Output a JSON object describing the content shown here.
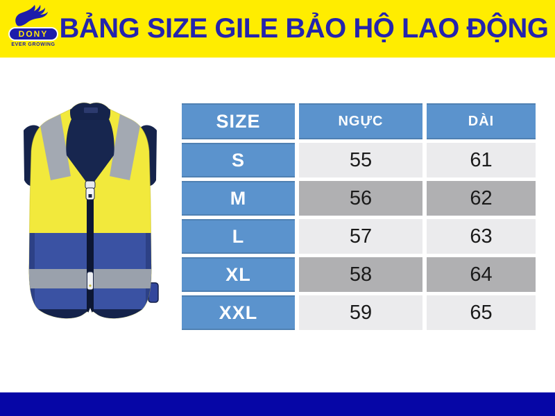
{
  "header": {
    "title": "BẢNG SIZE GILE BẢO HỘ LAO ĐỘNG",
    "logo": {
      "brand": "DONY",
      "tagline": "EVER GROWING"
    }
  },
  "size_table": {
    "columns": [
      "SIZE",
      "NGỰC",
      "DÀI"
    ],
    "rows": [
      {
        "size": "S",
        "chest": "55",
        "length": "61"
      },
      {
        "size": "M",
        "chest": "56",
        "length": "62"
      },
      {
        "size": "L",
        "chest": "57",
        "length": "63"
      },
      {
        "size": "XL",
        "chest": "58",
        "length": "64"
      },
      {
        "size": "XXL",
        "chest": "59",
        "length": "65"
      }
    ]
  },
  "chart_data": {
    "type": "table",
    "title": "BẢNG SIZE GILE BẢO HỘ LAO ĐỘNG",
    "columns": [
      "SIZE",
      "NGỰC",
      "DÀI"
    ],
    "rows": [
      [
        "S",
        55,
        61
      ],
      [
        "M",
        56,
        62
      ],
      [
        "L",
        57,
        63
      ],
      [
        "XL",
        58,
        64
      ],
      [
        "XXL",
        59,
        65
      ]
    ]
  },
  "illustration": {
    "name": "hi-vis-safety-vest"
  },
  "colors": {
    "banner_bg": "#ffed00",
    "title_text": "#2424ad",
    "table_header_bg": "#5b93cd",
    "row_light": "#ebebed",
    "row_dark": "#b0b0b2",
    "footer_bg": "#0606a6",
    "vest_yellow": "#f2e93c",
    "vest_blue": "#3a52a3",
    "vest_navy": "#15234b",
    "reflective_gray": "#a3a9b2"
  }
}
